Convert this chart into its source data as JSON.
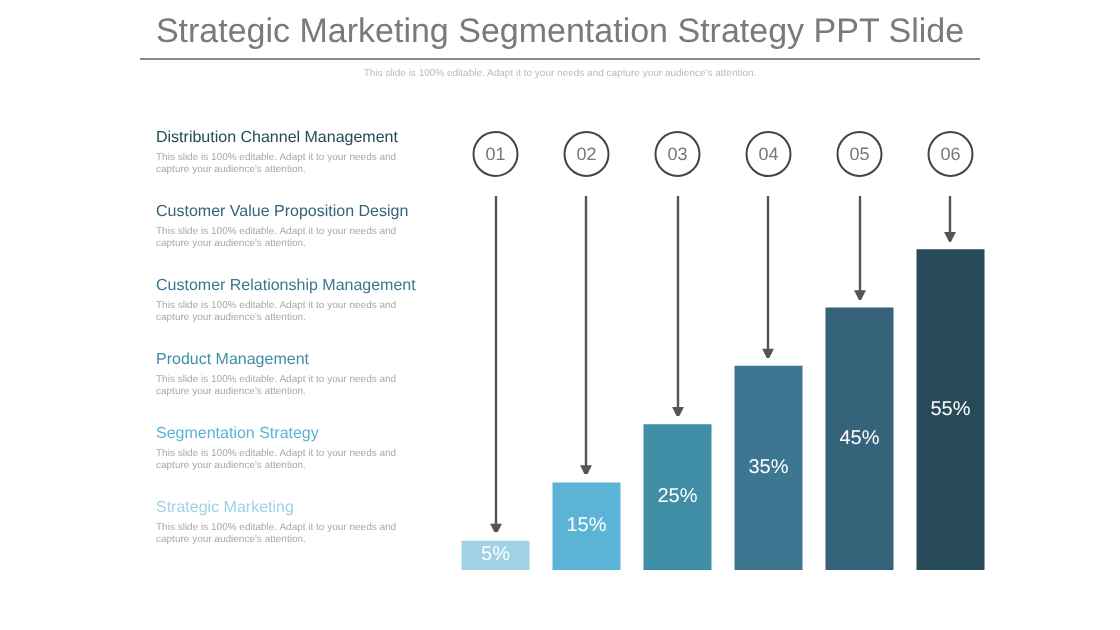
{
  "chart_data": {
    "type": "bar",
    "title": "Strategic Marketing Segmentation Strategy PPT Slide",
    "subtitle": "This slide is 100% editable. Adapt it to your needs and capture your audience's attention.",
    "categories": [
      "01",
      "02",
      "03",
      "04",
      "05",
      "06"
    ],
    "values": [
      5,
      15,
      25,
      35,
      45,
      55
    ],
    "value_labels": [
      "5%",
      "15%",
      "25%",
      "35%",
      "45%",
      "55%"
    ],
    "colors": [
      "#9fd2e5",
      "#5bb3d6",
      "#3f8ea6",
      "#3d7690",
      "#34637a",
      "#264a58"
    ],
    "annotations": [
      "Distribution Channel Management",
      "This slide is 100% editable. Adapt it to your needs and capture your audience's attention.",
      "Customer Value Proposition Design",
      "This slide is 100% editable. Adapt it to your needs and capture your audience's attention.",
      "Customer Relationship Management",
      "This slide is 100% editable. Adapt it to your needs and capture your audience's attention.",
      "Product Management",
      "This slide is 100% editable. Adapt it to your needs and capture your audience's attention.",
      "Segmentation Strategy",
      "This slide is 100% editable. Adapt it to your needs and capture your audience's attention.",
      "Strategic Marketing",
      "This slide is 100% editable. Adapt it to your needs and capture your audience's attention."
    ]
  }
}
